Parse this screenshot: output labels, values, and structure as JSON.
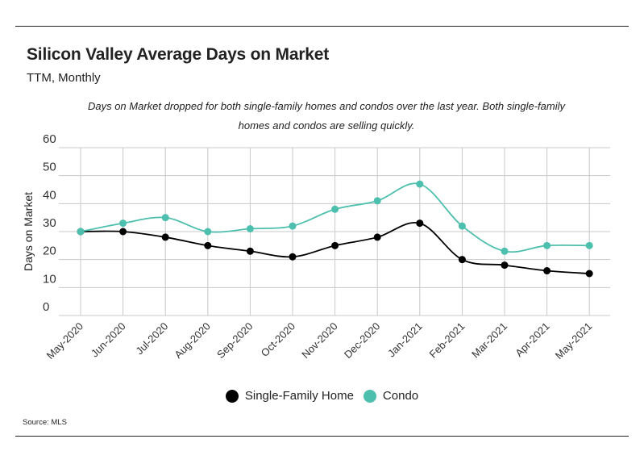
{
  "title": "Silicon Valley Average Days on Market",
  "subtitle": "TTM, Monthly",
  "note": "Days on Market dropped for both single-family homes and condos over the last year. Both single-family homes and condos are selling quickly.",
  "source": "Source:  MLS",
  "colors": {
    "single_family": "#000000",
    "condo": "#4dbfae",
    "grid": "#c8c8c8"
  },
  "chart_data": {
    "type": "line",
    "ylabel": "Days on Market",
    "ylim": [
      0,
      60
    ],
    "yticks": [
      0,
      10,
      20,
      30,
      40,
      50,
      60
    ],
    "grid": true,
    "legend_position": "bottom",
    "categories": [
      "May-2020",
      "Jun-2020",
      "Jul-2020",
      "Aug-2020",
      "Sep-2020",
      "Oct-2020",
      "Nov-2020",
      "Dec-2020",
      "Jan-2021",
      "Feb-2021",
      "Mar-2021",
      "Apr-2021",
      "May-2021"
    ],
    "series": [
      {
        "name": "Single-Family Home",
        "color": "#000000",
        "values": [
          30,
          30,
          28,
          25,
          23,
          21,
          25,
          28,
          33,
          20,
          18,
          16,
          15
        ]
      },
      {
        "name": "Condo",
        "color": "#4dbfae",
        "values": [
          30,
          33,
          35,
          30,
          31,
          32,
          38,
          41,
          47,
          32,
          23,
          25,
          25
        ]
      }
    ]
  }
}
